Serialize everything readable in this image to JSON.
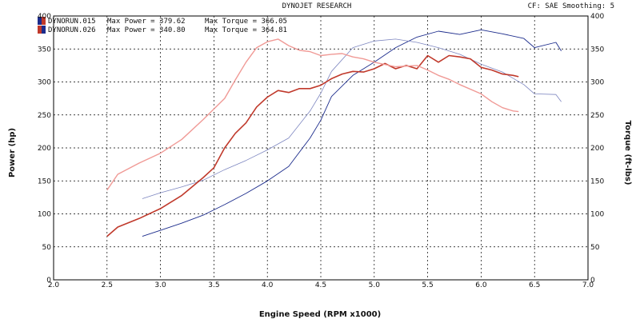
{
  "chart_data": {
    "type": "line",
    "title": "DYNOJET RESEARCH",
    "subtitle": "CF: SAE  Smoothing: 5",
    "xlabel": "Engine Speed (RPM x1000)",
    "ylabel_left": "Power (hp)",
    "ylabel_right": "Torque (ft-lbs)",
    "xlim": [
      2.0,
      7.0
    ],
    "ylim": [
      0,
      400
    ],
    "x_ticks": [
      "2.0",
      "2.5",
      "3.0",
      "3.5",
      "4.0",
      "4.5",
      "5.0",
      "5.5",
      "6.0",
      "6.5",
      "7.0"
    ],
    "y_ticks": [
      "0",
      "50",
      "100",
      "150",
      "200",
      "250",
      "300",
      "350",
      "400"
    ],
    "grid": true,
    "runs": [
      {
        "label": "DYNORUN.015",
        "power_label": "Max Power = 379.62",
        "torque_label": "Max Torque = 366.05",
        "swatch": [
          "#1c2c8c",
          "#c0392b"
        ]
      },
      {
        "label": "DYNORUN.026",
        "power_label": "Max Power = 340.80",
        "torque_label": "Max Torque = 364.81",
        "swatch": [
          "#c0392b",
          "#1c2c8c"
        ]
      }
    ],
    "series": [
      {
        "name": "DYNORUN.015 Power",
        "color": "#1c2c8c",
        "width": 0.9,
        "dash": "",
        "x": [
          2.83,
          3.0,
          3.2,
          3.4,
          3.6,
          3.8,
          4.0,
          4.2,
          4.4,
          4.5,
          4.6,
          4.8,
          5.0,
          5.2,
          5.4,
          5.6,
          5.8,
          6.0,
          6.2,
          6.4,
          6.5,
          6.7,
          6.75
        ],
        "y": [
          66,
          75,
          86,
          98,
          114,
          131,
          150,
          172,
          215,
          242,
          278,
          310,
          330,
          352,
          368,
          377,
          372,
          379,
          373,
          366,
          352,
          360,
          347
        ]
      },
      {
        "name": "DYNORUN.015 Torque",
        "color": "#7d86c0",
        "width": 0.8,
        "dash": "",
        "x": [
          2.83,
          3.0,
          3.2,
          3.4,
          3.6,
          3.8,
          4.0,
          4.2,
          4.4,
          4.5,
          4.6,
          4.8,
          5.0,
          5.2,
          5.4,
          5.6,
          5.8,
          6.0,
          6.2,
          6.4,
          6.5,
          6.7,
          6.75
        ],
        "y": [
          123,
          132,
          141,
          151,
          167,
          181,
          197,
          215,
          256,
          283,
          316,
          352,
          362,
          365,
          360,
          352,
          342,
          327,
          315,
          296,
          282,
          281,
          270
        ]
      },
      {
        "name": "DYNORUN.026 Power",
        "color": "#c0392b",
        "width": 1.6,
        "dash": "",
        "x": [
          2.5,
          2.6,
          2.8,
          3.0,
          3.2,
          3.4,
          3.5,
          3.6,
          3.7,
          3.8,
          3.9,
          4.0,
          4.1,
          4.2,
          4.3,
          4.4,
          4.5,
          4.6,
          4.7,
          4.8,
          4.9,
          5.0,
          5.1,
          5.2,
          5.3,
          5.4,
          5.5,
          5.6,
          5.7,
          5.8,
          5.9,
          6.0,
          6.1,
          6.2,
          6.3,
          6.35
        ],
        "y": [
          66,
          80,
          93,
          108,
          128,
          155,
          170,
          200,
          222,
          238,
          262,
          277,
          287,
          284,
          290,
          290,
          295,
          305,
          312,
          316,
          315,
          320,
          328,
          320,
          325,
          320,
          340,
          330,
          340,
          338,
          335,
          322,
          318,
          312,
          310,
          308
        ]
      },
      {
        "name": "DYNORUN.026 Torque",
        "color": "#f09a96",
        "width": 1.4,
        "dash": "",
        "x": [
          2.5,
          2.6,
          2.8,
          3.0,
          3.2,
          3.4,
          3.6,
          3.7,
          3.8,
          3.9,
          4.0,
          4.1,
          4.2,
          4.3,
          4.4,
          4.5,
          4.6,
          4.7,
          4.8,
          4.9,
          5.0,
          5.2,
          5.4,
          5.5,
          5.6,
          5.7,
          5.8,
          6.0,
          6.1,
          6.2,
          6.3,
          6.35
        ],
        "y": [
          136,
          160,
          177,
          192,
          213,
          243,
          275,
          303,
          330,
          352,
          361,
          365,
          355,
          348,
          346,
          340,
          342,
          343,
          338,
          335,
          330,
          323,
          325,
          318,
          310,
          304,
          296,
          282,
          270,
          261,
          256,
          255
        ]
      }
    ]
  }
}
